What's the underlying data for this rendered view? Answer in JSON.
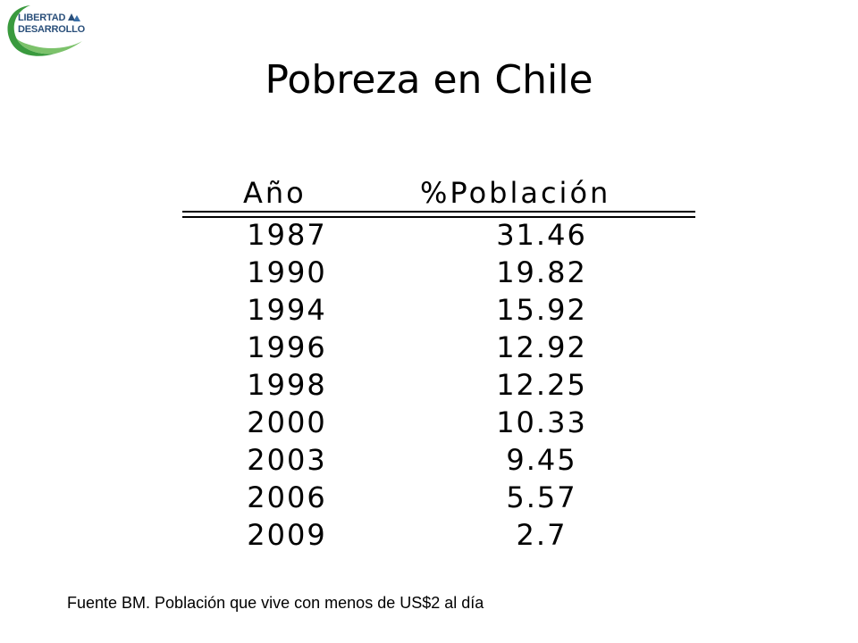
{
  "logo": {
    "line1": "LIBERTAD",
    "line2": "DESARROLLO"
  },
  "title": "Pobreza en Chile",
  "chart_data": {
    "type": "table",
    "title": "Pobreza en Chile",
    "columns": [
      "Año",
      "%Población"
    ],
    "rows": [
      {
        "year": "1987",
        "pct": "31.46"
      },
      {
        "year": "1990",
        "pct": "19.82"
      },
      {
        "year": "1994",
        "pct": "15.92"
      },
      {
        "year": "1996",
        "pct": "12.92"
      },
      {
        "year": "1998",
        "pct": "12.25"
      },
      {
        "year": "2000",
        "pct": "10.33"
      },
      {
        "year": "2003",
        "pct": "9.45"
      },
      {
        "year": "2006",
        "pct": "5.57"
      },
      {
        "year": "2009",
        "pct": "2.7"
      }
    ]
  },
  "footnote": "Fuente BM. Población que vive con menos de US$2 al día",
  "colors": {
    "logo_green": "#3a9a3e",
    "logo_blue": "#2a4f7a",
    "text": "#000000"
  }
}
